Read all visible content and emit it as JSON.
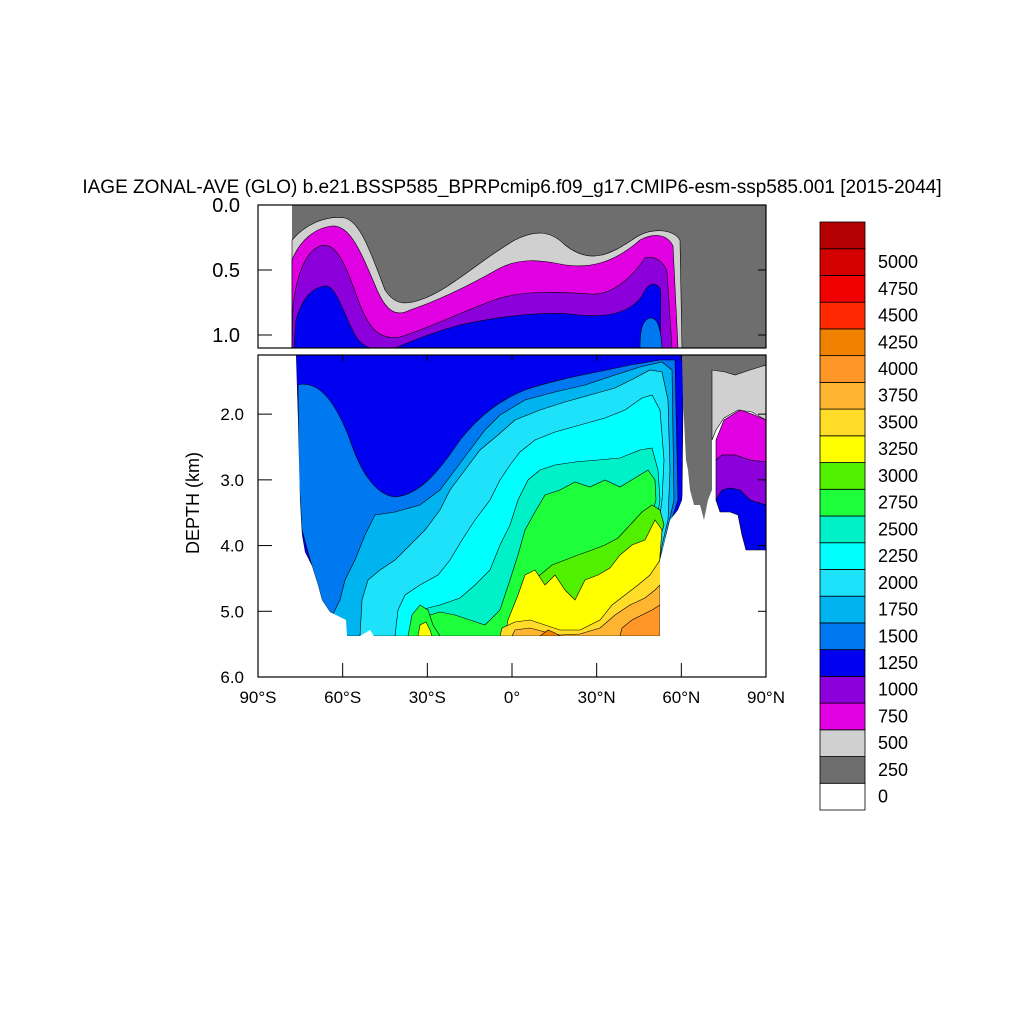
{
  "chart_data": {
    "type": "contour",
    "title": "IAGE ZONAL-AVE (GLO) b.e21.BSSP585_BPRPcmip6.f09_g17.CMIP6-esm-ssp585.001 [2015-2044]",
    "ylabel": "DEPTH (km)",
    "xlabel": "",
    "xlim": [
      -90,
      90
    ],
    "x_ticks": [
      {
        "value": -90,
        "label": "90°S"
      },
      {
        "value": -60,
        "label": "60°S"
      },
      {
        "value": -30,
        "label": "30°S"
      },
      {
        "value": 0,
        "label": "0°"
      },
      {
        "value": 30,
        "label": "30°N"
      },
      {
        "value": 60,
        "label": "60°N"
      },
      {
        "value": 90,
        "label": "90°N"
      }
    ],
    "upper_panel": {
      "ylim": [
        0,
        1.1
      ],
      "y_ticks": [
        {
          "value": 0,
          "label": "0.0"
        },
        {
          "value": 0.5,
          "label": "0.5"
        },
        {
          "value": 1.0,
          "label": "1.0"
        }
      ]
    },
    "lower_panel": {
      "ylim": [
        1.1,
        6.0
      ],
      "y_ticks": [
        {
          "value": 2,
          "label": "2.0"
        },
        {
          "value": 3,
          "label": "3.0"
        },
        {
          "value": 4,
          "label": "4.0"
        },
        {
          "value": 5,
          "label": "5.0"
        },
        {
          "value": 6,
          "label": "6.0"
        }
      ]
    },
    "levels": [
      {
        "label": "0",
        "color": "#ffffff"
      },
      {
        "label": "250",
        "color": "#6e6e6e"
      },
      {
        "label": "500",
        "color": "#d0d0d0"
      },
      {
        "label": "750",
        "color": "#e100e1"
      },
      {
        "label": "1000",
        "color": "#8c00dc"
      },
      {
        "label": "1250",
        "color": "#0000f0"
      },
      {
        "label": "1500",
        "color": "#0078f0"
      },
      {
        "label": "1750",
        "color": "#00b4f0"
      },
      {
        "label": "2000",
        "color": "#1ee1fa"
      },
      {
        "label": "2250",
        "color": "#00ffff"
      },
      {
        "label": "2500",
        "color": "#00f0c8"
      },
      {
        "label": "2750",
        "color": "#1eff3c"
      },
      {
        "label": "3000",
        "color": "#50f000"
      },
      {
        "label": "3250",
        "color": "#ffff00"
      },
      {
        "label": "3500",
        "color": "#ffdc28"
      },
      {
        "label": "3750",
        "color": "#ffb432"
      },
      {
        "label": "4000",
        "color": "#ff9628"
      },
      {
        "label": "4250",
        "color": "#f08200"
      },
      {
        "label": "4500",
        "color": "#ff2800"
      },
      {
        "label": "4750",
        "color": "#f00000"
      },
      {
        "label": "5000",
        "color": "#d20000"
      },
      {
        "label": "",
        "color": "#b40000"
      }
    ]
  }
}
